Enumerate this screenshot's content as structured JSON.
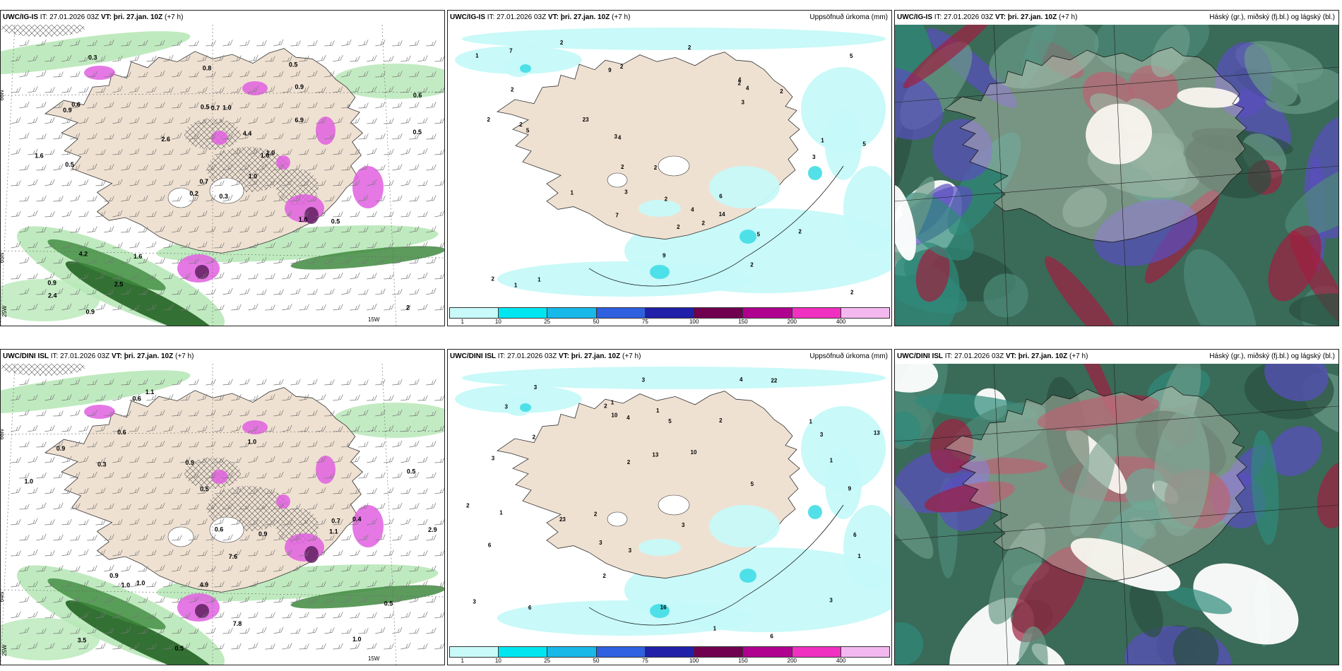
{
  "panels": [
    {
      "id": "p1",
      "model": "UWC/IG-IS",
      "it": "IT: 27.01.2026 03Z",
      "vt_label": "VT:",
      "vt": "þri. 27.jan. 10Z",
      "lead": "(+7 h)",
      "right_title": "",
      "kind": "precip_wind",
      "lat_labels": [
        "66N",
        "65N"
      ],
      "lon_labels": [
        "25W",
        "15W"
      ],
      "values": [
        "0.3",
        "0.9",
        "0.7",
        "0.9",
        "1.0",
        "1.6",
        "0.5",
        "1.0",
        "0.9",
        "1.0",
        "0.3",
        "2",
        "0.5",
        "0.6",
        "0.2",
        "6.9",
        "0.9",
        "0.5",
        "4.4",
        "4.2",
        "2.6",
        "2.4",
        "2.5",
        "0.7",
        "1.0",
        "0.5",
        "0.6",
        "0.8",
        "1.6",
        "1.0",
        "0.5"
      ]
    },
    {
      "id": "p2",
      "model": "UWC/IG-IS",
      "it": "IT: 27.01.2026 03Z",
      "vt_label": "VT:",
      "vt": "þri. 27.jan. 10Z",
      "lead": "(+7 h)",
      "right_title": "Uppsöfnuð úrkoma (mm)",
      "kind": "accum",
      "values": [
        "2",
        "2",
        "2",
        "2",
        "4",
        "4",
        "3",
        "3",
        "2",
        "2",
        "3",
        "1",
        "5",
        "2",
        "3",
        "1",
        "2",
        "2",
        "1",
        "2",
        "1",
        "2",
        "4",
        "5",
        "14",
        "23",
        "7",
        "4",
        "9",
        "2",
        "2",
        "1",
        "2",
        "2",
        "7",
        "5",
        "5",
        "9",
        "2",
        "2",
        "6"
      ]
    },
    {
      "id": "p3",
      "model": "UWC/IG-IS",
      "it": "IT: 27.01.2026 03Z",
      "vt_label": "VT:",
      "vt": "þri. 27.jan. 10Z",
      "lead": "(+7 h)",
      "right_title": "Háský (gr.), miðský (fj.bl.) og lágský (bl.)",
      "kind": "clouds"
    },
    {
      "id": "p4",
      "model": "UWC/DINI ISL",
      "it": "IT: 27.01.2026 03Z",
      "vt_label": "VT:",
      "vt": "þri. 27.jan. 10Z",
      "lead": "(+7 h)",
      "right_title": "",
      "kind": "precip_wind",
      "lat_labels": [
        "66N",
        "64N"
      ],
      "lon_labels": [
        "25W",
        "15W"
      ],
      "values": [
        "0.3",
        "0.9",
        "0.5",
        "0.6",
        "1.0",
        "1.0",
        "1.0",
        "0.9",
        "0.5",
        "1.1",
        "1.1",
        "0.7",
        "1.0",
        "0.4",
        "7.6",
        "7.8",
        "0.9",
        "0.6",
        "0.9",
        "4.9",
        "2.9",
        "1.0",
        "0.6",
        "0.5",
        "0.5",
        "3.5"
      ]
    },
    {
      "id": "p5",
      "model": "UWC/DINI ISL",
      "it": "IT: 27.01.2026 03Z",
      "vt_label": "VT:",
      "vt": "þri. 27.jan. 10Z",
      "lead": "(+7 h)",
      "right_title": "Uppsöfnuð úrkoma (mm)",
      "kind": "accum",
      "values": [
        "3",
        "1",
        "1",
        "1",
        "1",
        "2",
        "1",
        "4",
        "4",
        "3",
        "2",
        "3",
        "3",
        "13",
        "16",
        "2",
        "2",
        "2",
        "6",
        "13",
        "22",
        "10",
        "6",
        "3",
        "10",
        "9",
        "3",
        "6",
        "3",
        "3",
        "23",
        "6",
        "5",
        "2",
        "3",
        "1",
        "1",
        "5",
        "2",
        "3"
      ]
    },
    {
      "id": "p6",
      "model": "UWC/DINI ISL",
      "it": "IT: 27.01.2026 03Z",
      "vt_label": "VT:",
      "vt": "þri. 27.jan. 10Z",
      "lead": "(+7 h)",
      "right_title": "Háský (gr.), miðský (fj.bl.) og lágský (bl.)",
      "kind": "clouds"
    }
  ],
  "colorbar": {
    "labels": [
      "1",
      "10",
      "25",
      "50",
      "75",
      "100",
      "150",
      "200",
      "400"
    ],
    "colors": [
      "#c8fafa",
      "#00e6f0",
      "#18b8e8",
      "#2e60e0",
      "#2020a8",
      "#700050",
      "#b00090",
      "#f030c0",
      "#f4b8f0"
    ]
  },
  "colors": {
    "land": "#efe1d2",
    "sea": "#ffffff",
    "accum_light": "#c6f9f9",
    "precip_green": "#b8e8b8",
    "precip_dark": "#1a5a1a",
    "precip_magenta": "#e060e0",
    "cloud_dark": "#3a6a58",
    "cloud_teal": "#2f8a7a",
    "cloud_blue": "#5a4ec0",
    "cloud_red": "#a02040"
  }
}
